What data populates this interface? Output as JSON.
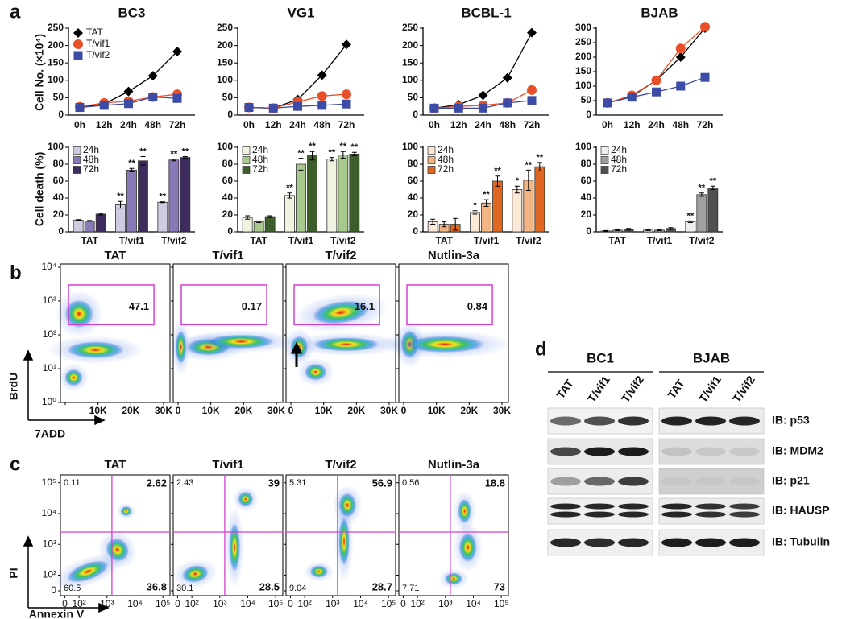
{
  "panel_labels": [
    "a",
    "b",
    "c",
    "d"
  ],
  "chart_data": [
    {
      "type": "line",
      "title": "BC3",
      "y_label": "Cell No. (×10⁴)",
      "legend": "upper left",
      "categories": [
        "0h",
        "12h",
        "24h",
        "48h",
        "72h"
      ],
      "ylim": [
        0,
        250
      ],
      "yticks": [
        0,
        50,
        100,
        150,
        200,
        250
      ],
      "series": [
        {
          "name": "TAT",
          "color": "#000000",
          "marker": "diamond",
          "values": [
            22,
            32,
            68,
            113,
            183
          ]
        },
        {
          "name": "T/vif1",
          "color": "#e8502a",
          "marker": "circle",
          "values": [
            24,
            35,
            40,
            52,
            60
          ]
        },
        {
          "name": "T/vif2",
          "color": "#3b4ba6",
          "marker": "square",
          "values": [
            22,
            28,
            33,
            52,
            48
          ]
        }
      ]
    },
    {
      "type": "line",
      "title": "VG1",
      "categories": [
        "0h",
        "12h",
        "24h",
        "48h",
        "72h"
      ],
      "ylim": [
        0,
        250
      ],
      "yticks": [
        0,
        50,
        100,
        150,
        200,
        250
      ],
      "series": [
        {
          "name": "TAT",
          "color": "#000000",
          "marker": "diamond",
          "values": [
            22,
            20,
            45,
            115,
            203
          ]
        },
        {
          "name": "T/vif1",
          "color": "#e8502a",
          "marker": "circle",
          "values": [
            22,
            20,
            38,
            55,
            60
          ]
        },
        {
          "name": "T/vif2",
          "color": "#3b4ba6",
          "marker": "square",
          "values": [
            22,
            20,
            25,
            28,
            32
          ]
        }
      ]
    },
    {
      "type": "line",
      "title": "BCBL-1",
      "categories": [
        "0h",
        "12h",
        "24h",
        "48h",
        "72h"
      ],
      "ylim": [
        0,
        250
      ],
      "yticks": [
        0,
        50,
        100,
        150,
        200,
        250
      ],
      "series": [
        {
          "name": "TAT",
          "color": "#000000",
          "marker": "diamond",
          "values": [
            20,
            30,
            57,
            107,
            237
          ]
        },
        {
          "name": "T/vif1",
          "color": "#e8502a",
          "marker": "circle",
          "values": [
            20,
            25,
            28,
            35,
            72
          ]
        },
        {
          "name": "T/vif2",
          "color": "#3b4ba6",
          "marker": "square",
          "values": [
            20,
            20,
            20,
            35,
            42
          ]
        }
      ]
    },
    {
      "type": "line",
      "title": "BJAB",
      "categories": [
        "0h",
        "12h",
        "24h",
        "48h",
        "72h"
      ],
      "ylim": [
        0,
        300
      ],
      "yticks": [
        0,
        50,
        100,
        150,
        200,
        250,
        300
      ],
      "series": [
        {
          "name": "TAT",
          "color": "#000000",
          "marker": "diamond",
          "values": [
            42,
            65,
            120,
            200,
            300
          ]
        },
        {
          "name": "T/vif1",
          "color": "#e8502a",
          "marker": "circle",
          "values": [
            42,
            68,
            120,
            230,
            305
          ]
        },
        {
          "name": "T/vif2",
          "color": "#3b4ba6",
          "marker": "square",
          "values": [
            42,
            62,
            80,
            100,
            130
          ]
        }
      ]
    },
    {
      "type": "bar",
      "y_label": "Cell death (%)",
      "legend": "upper left",
      "categories": [
        "TAT",
        "T/vif1",
        "T/vif2"
      ],
      "ylim": [
        0,
        100
      ],
      "yticks": [
        0,
        20,
        40,
        60,
        80,
        100
      ],
      "series": [
        {
          "name": "24h",
          "color": "#cfcbe0",
          "values": [
            14,
            32,
            35
          ],
          "errors": [
            0.5,
            4,
            0.5
          ],
          "significance": [
            null,
            "**",
            "**"
          ]
        },
        {
          "name": "48h",
          "color": "#8878b5",
          "values": [
            13,
            73,
            85
          ],
          "errors": [
            0.5,
            2,
            1
          ],
          "significance": [
            null,
            "**",
            "**"
          ]
        },
        {
          "name": "72h",
          "color": "#3c2b5c",
          "values": [
            21,
            84,
            88
          ],
          "errors": [
            1,
            5,
            1
          ],
          "significance": [
            null,
            "**",
            "**"
          ]
        }
      ]
    },
    {
      "type": "bar",
      "legend": "upper left",
      "categories": [
        "TAT",
        "T/vif1",
        "T/vif2"
      ],
      "ylim": [
        0,
        100
      ],
      "yticks": [
        0,
        20,
        40,
        60,
        80,
        100
      ],
      "series": [
        {
          "name": "24h",
          "color": "#f0f3df",
          "values": [
            17,
            43,
            86
          ],
          "errors": [
            2,
            3,
            2
          ],
          "significance": [
            null,
            "**",
            "**"
          ]
        },
        {
          "name": "48h",
          "color": "#a7c98d",
          "values": [
            12,
            80,
            91
          ],
          "errors": [
            1,
            7,
            4
          ],
          "significance": [
            null,
            "**",
            "**"
          ]
        },
        {
          "name": "72h",
          "color": "#3d5e2b",
          "values": [
            18,
            90,
            92
          ],
          "errors": [
            1,
            5,
            2
          ],
          "significance": [
            null,
            "**",
            "**"
          ]
        }
      ]
    },
    {
      "type": "bar",
      "legend": "upper left",
      "categories": [
        "TAT",
        "T/vif1",
        "T/vif2"
      ],
      "ylim": [
        0,
        100
      ],
      "yticks": [
        0,
        20,
        40,
        60,
        80,
        100
      ],
      "series": [
        {
          "name": "24h",
          "color": "#fbe8d6",
          "values": [
            12,
            23,
            50
          ],
          "errors": [
            3,
            2,
            4
          ],
          "significance": [
            null,
            "*",
            "*"
          ]
        },
        {
          "name": "48h",
          "color": "#f5b583",
          "values": [
            9,
            34,
            61
          ],
          "errors": [
            3,
            4,
            12
          ],
          "significance": [
            null,
            "**",
            "**"
          ]
        },
        {
          "name": "72h",
          "color": "#e0671f",
          "values": [
            9,
            60,
            77
          ],
          "errors": [
            7,
            6,
            5
          ],
          "significance": [
            null,
            "**",
            "**"
          ]
        }
      ]
    },
    {
      "type": "bar",
      "legend": "upper left",
      "categories": [
        "TAT",
        "T/vif1",
        "T/vif2"
      ],
      "ylim": [
        0,
        100
      ],
      "yticks": [
        0,
        20,
        40,
        60,
        80,
        100
      ],
      "series": [
        {
          "name": "24h",
          "color": "#efefef",
          "values": [
            1,
            2,
            12
          ],
          "errors": [
            0.5,
            0.5,
            1
          ],
          "significance": [
            null,
            null,
            "**"
          ]
        },
        {
          "name": "48h",
          "color": "#a0a0a0",
          "values": [
            2,
            2,
            44
          ],
          "errors": [
            0.5,
            0.5,
            2
          ],
          "significance": [
            null,
            null,
            "**"
          ]
        },
        {
          "name": "72h",
          "color": "#505050",
          "values": [
            3,
            4,
            52
          ],
          "errors": [
            1,
            1,
            2
          ],
          "significance": [
            null,
            null,
            "**"
          ]
        }
      ]
    }
  ],
  "flow_b": {
    "x_label": "7ADD",
    "y_label": "BrdU",
    "xticks": [
      0,
      {
        "value": 10000,
        "label": "10K"
      },
      {
        "value": 20000,
        "label": "20K"
      },
      {
        "value": 30000,
        "label": "30K"
      }
    ],
    "yticks": [
      {
        "value": 1,
        "label": "10⁰"
      },
      {
        "value": 10,
        "label": "10¹"
      },
      {
        "value": 100,
        "label": "10²"
      },
      {
        "value": 1000,
        "label": "10³"
      },
      {
        "value": 10000,
        "label": "10⁴"
      }
    ],
    "plots": [
      {
        "title": "TAT",
        "gate": 47.1
      },
      {
        "title": "T/vif1",
        "gate": 0.17
      },
      {
        "title": "T/vif2",
        "gate": 16.1
      },
      {
        "title": "Nutlin-3a",
        "gate": 0.84
      }
    ]
  },
  "flow_c": {
    "x_label": "Annexin V",
    "y_label": "PI",
    "xticks": [
      0,
      {
        "value": 100,
        "label": "10²"
      },
      {
        "value": 1000,
        "label": "10³"
      },
      {
        "value": 10000,
        "label": "10⁴"
      },
      {
        "value": 100000,
        "label": "10⁵"
      }
    ],
    "yticks": [
      0,
      {
        "value": 100,
        "label": "10²"
      },
      {
        "value": 1000,
        "label": "10³"
      },
      {
        "value": 10000,
        "label": "10⁴"
      },
      {
        "value": 100000,
        "label": "10⁵"
      }
    ],
    "plots": [
      {
        "title": "TAT",
        "quadrants": [
          0.11,
          2.62,
          60.5,
          36.8
        ]
      },
      {
        "title": "T/vif1",
        "quadrants": [
          2.43,
          39,
          30.1,
          28.5
        ]
      },
      {
        "title": "T/vif2",
        "quadrants": [
          5.31,
          56.9,
          9.04,
          28.7
        ]
      },
      {
        "title": "Nutlin-3a",
        "quadrants": [
          0.56,
          18.8,
          7.71,
          73
        ]
      }
    ]
  },
  "blot": {
    "groups": [
      {
        "name": "BC1",
        "lanes": [
          "TAT",
          "T/vif1",
          "T/vif2"
        ]
      },
      {
        "name": "BJAB",
        "lanes": [
          "TAT",
          "T/vif1",
          "T/vif2"
        ]
      }
    ],
    "rows": [
      "IB: p53",
      "IB: MDM2",
      "IB: p21",
      "IB: HAUSP",
      "IB: Tubulin"
    ]
  }
}
